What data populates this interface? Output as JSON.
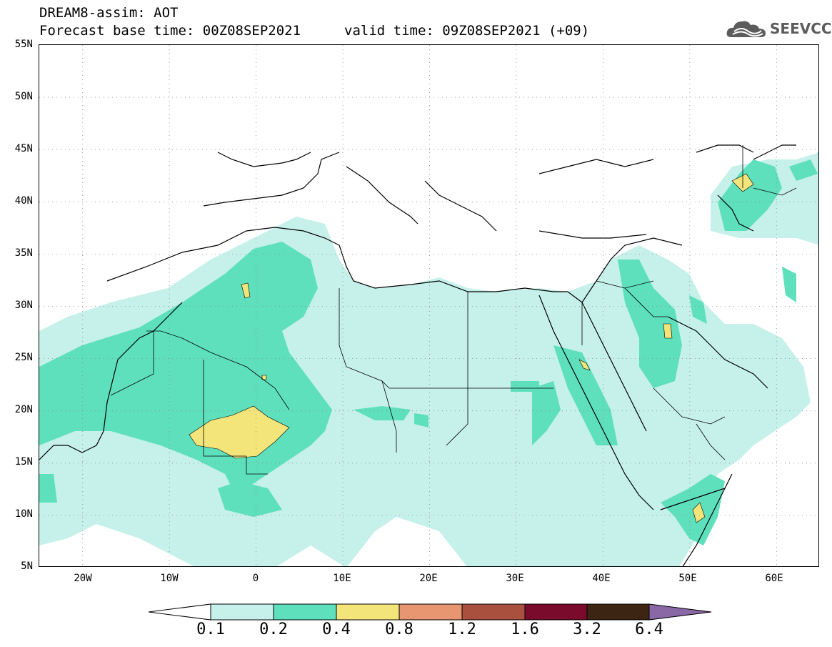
{
  "header": {
    "title_line1": "DREAM8-assim: AOT",
    "title_line2": "Forecast base time: 00Z08SEP2021",
    "valid_time": "valid time: 09Z08SEP2021 (+09)",
    "logo_text": "SEEVCCC",
    "logo_icon": "cloud-icon"
  },
  "map": {
    "lon_range": [
      -25,
      65
    ],
    "lat_range": [
      5,
      55
    ],
    "lat_labels": [
      "55N",
      "50N",
      "45N",
      "40N",
      "35N",
      "30N",
      "25N",
      "20N",
      "15N",
      "10N",
      "5N"
    ],
    "lon_labels": [
      "20W",
      "10W",
      "0",
      "10E",
      "20E",
      "30E",
      "40E",
      "50E",
      "60E"
    ],
    "grid": "dotted"
  },
  "colorbar": {
    "labels": [
      "0.1",
      "0.2",
      "0.4",
      "0.8",
      "1.2",
      "1.6",
      "3.2",
      "6.4"
    ],
    "colors": [
      "#ffffff",
      "#c6f0ea",
      "#5ee0bc",
      "#f3e57a",
      "#e89571",
      "#a9503f",
      "#7b0b2d",
      "#3c2513",
      "#8a67a5"
    ]
  }
}
